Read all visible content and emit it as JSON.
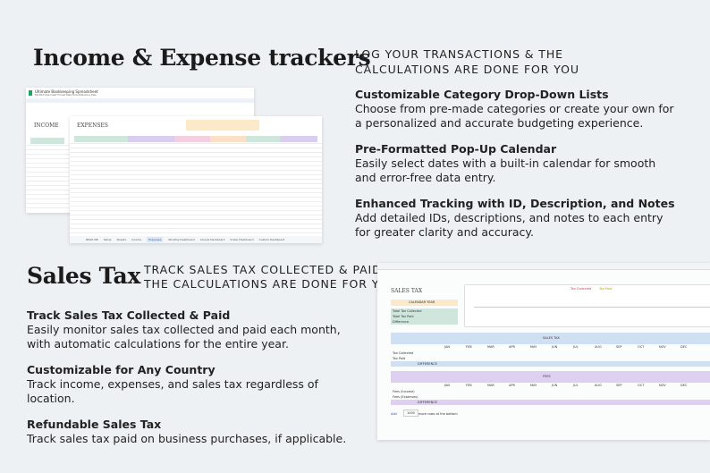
{
  "top": {
    "title": "Income & Expense trackers",
    "tagline": [
      "LOG YOUR TRANSACTIONS & THE",
      "CALCULATIONS ARE DONE FOR YOU"
    ],
    "features": [
      {
        "heading": "Customizable Category Drop-Down Lists",
        "body": "Choose from pre-made categories or create your own for a personalized and accurate budgeting experience."
      },
      {
        "heading": "Pre-Formatted Pop-Up Calendar",
        "body": "Easily select dates with a built-in calendar for smooth and error-free data entry."
      },
      {
        "heading": "Enhanced Tracking with ID, Description, and Notes",
        "body": "Add detailed IDs, descriptions, and notes to each entry for greater clarity and accuracy."
      }
    ]
  },
  "bottom": {
    "title": "Sales Tax",
    "tagline": [
      "TRACK SALES TAX COLLECTED & PAID -",
      "THE CALCULATIONS ARE DONE FOR YOU"
    ],
    "features": [
      {
        "heading": "Track Sales Tax Collected & Paid",
        "body": "Easily monitor sales tax collected and paid each month, with automatic calculations for the entire year."
      },
      {
        "heading": "Customizable for Any Country",
        "body": "Track income, expenses, and sales tax regardless of location."
      },
      {
        "heading": "Refundable Sales Tax",
        "body": "Track sales tax paid on business purchases, if applicable."
      }
    ]
  },
  "tracker_shot": {
    "doc_title": "Ultimate Bookkeeping Spreadsheet",
    "menu": "File  Edit  View  Insert  Format  Data  Tools  Extensions  Help",
    "income": "INCOME",
    "expenses": "EXPENSES",
    "tabs": [
      "READ ME",
      "Setup",
      "Sheet1",
      "Income",
      "Expenses",
      "Monthly Dashboard",
      "Annual Dashboard",
      "5-Year Dashboard",
      "Custom Dashboard"
    ],
    "active_tab": "Expenses"
  },
  "tax_shot": {
    "title": "SALES TAX",
    "calendar_label": "CALENDAR YEAR",
    "summary": [
      "Total Tax Collected",
      "Total Tax Paid",
      "Difference"
    ],
    "legend": [
      "Tax Collected",
      "Tax Paid"
    ],
    "section1": "SALES TAX",
    "section2": "FEES",
    "rows1": [
      "Tax Collected",
      "Tax Paid",
      "DIFFERENCE"
    ],
    "rows2": [
      "Fees (Income)",
      "Fees (Expenses)",
      "DIFFERENCE"
    ],
    "months": [
      "JAN",
      "FEB",
      "MAR",
      "APR",
      "MAY",
      "JUN",
      "JUL",
      "AUG",
      "SEP",
      "OCT",
      "NOV",
      "DEC"
    ],
    "add": "Add",
    "add_count": "1000",
    "add_suffix": "more rows at the bottom"
  }
}
